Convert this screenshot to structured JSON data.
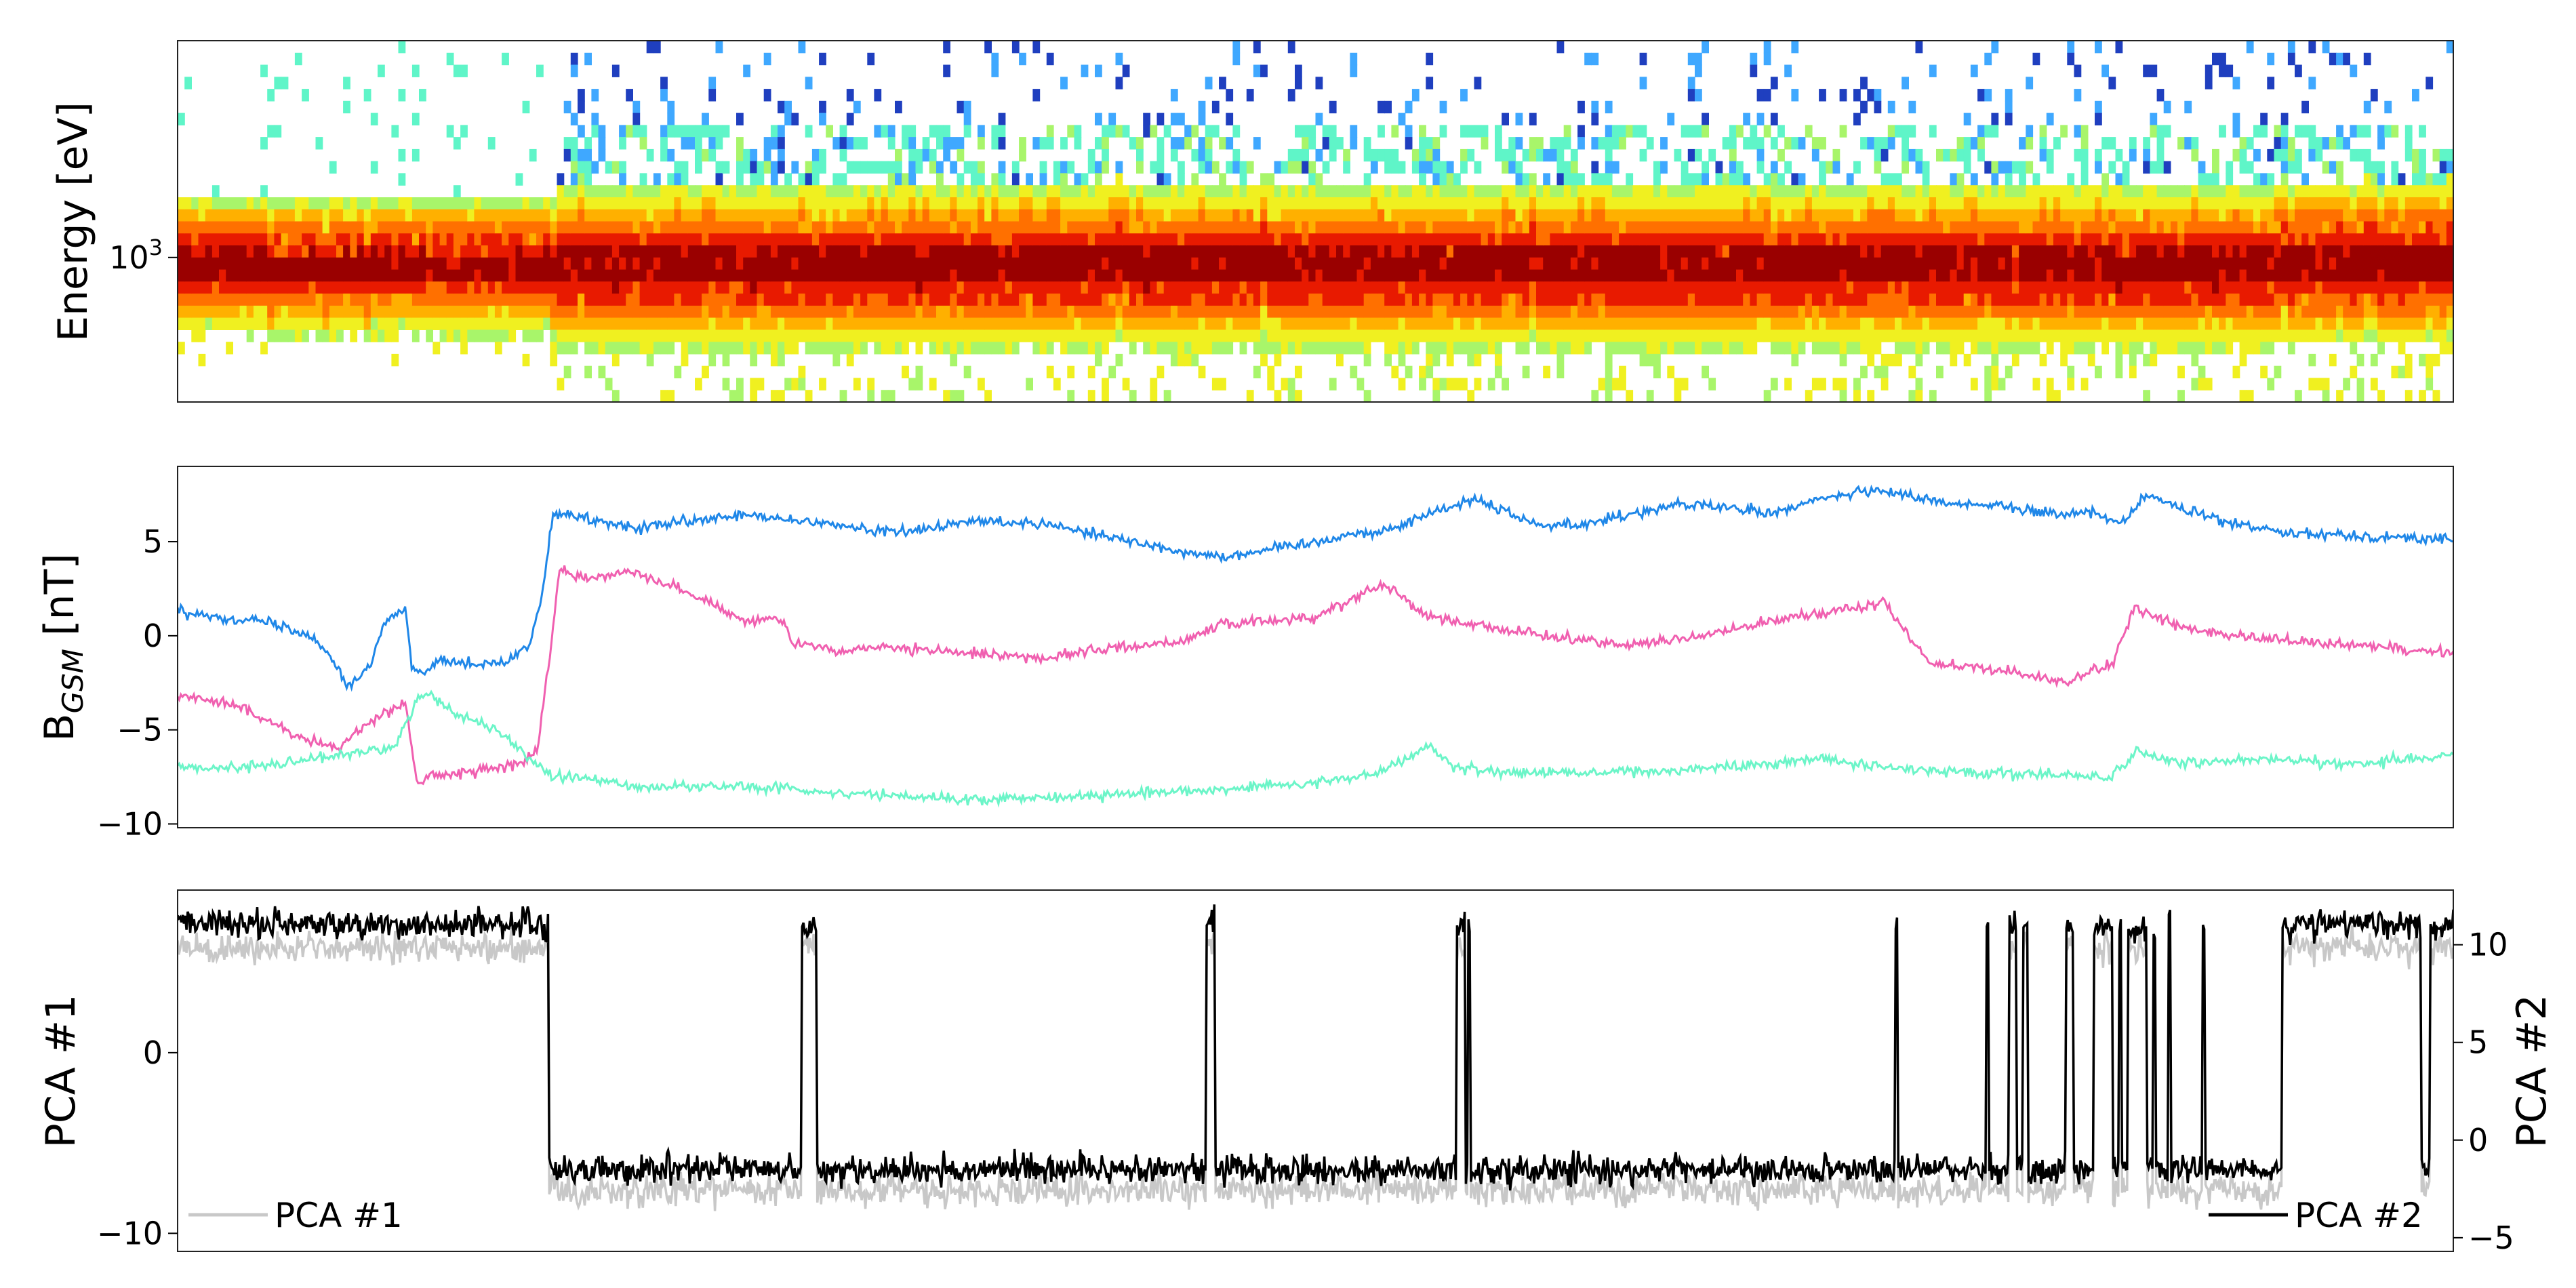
{
  "chart_data": [
    {
      "type": "heatmap",
      "ylabel": "Energy [eV]",
      "yscale": "log",
      "yticks": [
        {
          "value": 1000,
          "label": "10",
          "sup": "3"
        }
      ],
      "ylim": [
        250,
        8000
      ],
      "xlim": [
        0,
        1
      ],
      "colormap": "jet-like: blue, cyan, green, yellow, orange, red, dark red",
      "colors": [
        "#1f3fbf",
        "#3fa8ff",
        "#5ff5c8",
        "#a8f56a",
        "#f0f020",
        "#ffb000",
        "#ff7000",
        "#e81a00",
        "#9a0000"
      ],
      "core_energy_eV": [
        700,
        1400
      ],
      "regimes": [
        {
          "x": [
            0,
            0.165
          ],
          "description": "narrow band, sparse high-energy counts"
        },
        {
          "x": [
            0.165,
            1
          ],
          "description": "broader band with scattered low and high energy counts"
        }
      ],
      "grid": false
    },
    {
      "type": "line",
      "ylabel": "B",
      "ylabel_sub": "GSM",
      "ylabel_unit": " [nT]",
      "ylim": [
        -10.2,
        9.0
      ],
      "yticks": [
        -10,
        -5,
        0,
        5
      ],
      "xlim": [
        0,
        1
      ],
      "grid": false,
      "series": [
        {
          "color": "#1f87e8",
          "x": [
            0,
            0.02,
            0.04,
            0.055,
            0.065,
            0.075,
            0.085,
            0.09,
            0.1,
            0.103,
            0.108,
            0.115,
            0.13,
            0.145,
            0.155,
            0.16,
            0.165,
            0.18,
            0.2,
            0.22,
            0.25,
            0.28,
            0.3,
            0.32,
            0.35,
            0.38,
            0.4,
            0.42,
            0.44,
            0.46,
            0.5,
            0.52,
            0.53,
            0.55,
            0.57,
            0.6,
            0.62,
            0.64,
            0.66,
            0.68,
            0.7,
            0.72,
            0.74,
            0.76,
            0.78,
            0.8,
            0.82,
            0.84,
            0.855,
            0.865,
            0.88,
            0.9,
            0.93,
            0.96,
            1.0
          ],
          "y": [
            1.3,
            1.0,
            0.7,
            0.2,
            -0.6,
            -2.7,
            -1.5,
            0.5,
            1.5,
            -1.8,
            -2.0,
            -1.2,
            -1.5,
            -1.4,
            -0.4,
            2.0,
            6.5,
            6.2,
            5.7,
            6.0,
            6.4,
            6.0,
            5.7,
            5.5,
            6.1,
            6.0,
            5.5,
            5.0,
            4.5,
            4.2,
            5.0,
            5.5,
            5.5,
            6.5,
            7.3,
            5.8,
            6.0,
            6.5,
            7.0,
            6.8,
            6.5,
            7.2,
            7.7,
            7.5,
            7.0,
            7.0,
            6.5,
            6.5,
            6.0,
            7.5,
            6.8,
            6.0,
            5.5,
            5.3,
            5.1
          ]
        },
        {
          "color": "#f060b0",
          "x": [
            0,
            0.02,
            0.04,
            0.055,
            0.07,
            0.085,
            0.1,
            0.105,
            0.11,
            0.13,
            0.15,
            0.158,
            0.163,
            0.168,
            0.18,
            0.2,
            0.22,
            0.25,
            0.265,
            0.27,
            0.28,
            0.29,
            0.3,
            0.33,
            0.36,
            0.38,
            0.4,
            0.44,
            0.46,
            0.5,
            0.53,
            0.55,
            0.56,
            0.6,
            0.64,
            0.68,
            0.7,
            0.72,
            0.74,
            0.75,
            0.77,
            0.8,
            0.83,
            0.85,
            0.86,
            0.88,
            0.9,
            0.93,
            0.96,
            1.0
          ],
          "y": [
            -3.2,
            -3.5,
            -4.5,
            -5.5,
            -6.0,
            -4.5,
            -3.5,
            -7.8,
            -7.5,
            -7.2,
            -6.8,
            -6.2,
            -1.5,
            3.5,
            3.0,
            3.5,
            2.5,
            0.8,
            1.0,
            -0.5,
            -0.5,
            -1.0,
            -0.6,
            -0.8,
            -1.0,
            -1.2,
            -0.8,
            -0.3,
            0.6,
            1.0,
            2.8,
            1.0,
            0.8,
            0.0,
            -0.5,
            0.2,
            0.8,
            1.2,
            1.5,
            1.8,
            -1.5,
            -1.8,
            -2.5,
            -1.5,
            1.5,
            0.5,
            0.0,
            -0.3,
            -0.5,
            -0.9
          ]
        },
        {
          "color": "#6cf5c8",
          "x": [
            0,
            0.03,
            0.06,
            0.08,
            0.095,
            0.105,
            0.11,
            0.12,
            0.14,
            0.15,
            0.16,
            0.165,
            0.18,
            0.2,
            0.25,
            0.3,
            0.35,
            0.4,
            0.45,
            0.5,
            0.53,
            0.55,
            0.56,
            0.6,
            0.65,
            0.7,
            0.72,
            0.75,
            0.8,
            0.85,
            0.86,
            0.88,
            0.92,
            0.95,
            1.0
          ],
          "y": [
            -7.0,
            -7.0,
            -6.5,
            -6.2,
            -6.0,
            -3.5,
            -3.0,
            -4.0,
            -5.0,
            -6.0,
            -7.0,
            -7.5,
            -7.6,
            -8.0,
            -8.0,
            -8.4,
            -8.7,
            -8.5,
            -8.2,
            -7.8,
            -7.2,
            -5.8,
            -7.0,
            -7.3,
            -7.2,
            -6.8,
            -6.5,
            -7.0,
            -7.3,
            -7.5,
            -6.2,
            -6.8,
            -6.5,
            -6.8,
            -6.4
          ]
        }
      ]
    },
    {
      "type": "line",
      "ylabel_left": "PCA #1",
      "ylabel_right": "PCA #2",
      "ylim_left": [
        -11.0,
        9.0
      ],
      "ylim_right": [
        -5.7,
        12.8
      ],
      "yticks_left": [
        -10,
        0
      ],
      "yticks_right": [
        -5,
        0,
        5,
        10
      ],
      "xlim": [
        0,
        1
      ],
      "legend": [
        {
          "label": "PCA #1",
          "color": "#c8c8c8",
          "placement": "lower-left"
        },
        {
          "label": "PCA #2",
          "color": "#000000",
          "placement": "lower-right"
        }
      ],
      "baseline": {
        "pca1_high": 5.8,
        "pca1_low": -7.0,
        "pca2_high": 11.0,
        "pca2_low": -1.5
      },
      "high_intervals": [
        [
          0,
          0.163
        ],
        [
          0.274,
          0.281
        ],
        [
          0.452,
          0.456
        ],
        [
          0.562,
          0.566
        ],
        [
          0.567,
          0.568
        ],
        [
          0.755,
          0.756
        ],
        [
          0.795,
          0.796
        ],
        [
          0.805,
          0.808
        ],
        [
          0.811,
          0.813
        ],
        [
          0.83,
          0.833
        ],
        [
          0.842,
          0.85
        ],
        [
          0.853,
          0.854
        ],
        [
          0.857,
          0.865
        ],
        [
          0.868,
          0.869
        ],
        [
          0.875,
          0.876
        ],
        [
          0.89,
          0.891
        ],
        [
          0.925,
          0.986
        ],
        [
          0.99,
          1.0
        ]
      ]
    }
  ]
}
